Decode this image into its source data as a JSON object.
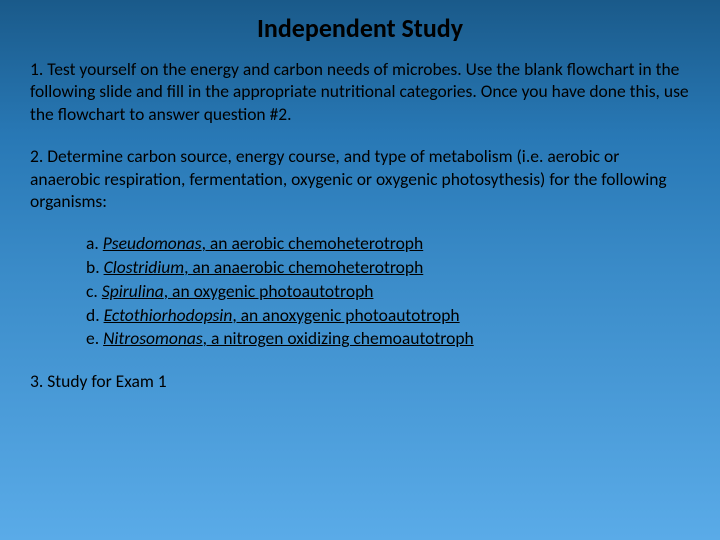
{
  "slide": {
    "title": "Independent Study",
    "q1": "1.  Test yourself on the energy and carbon needs of microbes.  Use the blank flowchart in the following slide and fill in the appropriate nutritional categories.  Once you have done this, use the flowchart to answer question #2.",
    "q2": "2.  Determine carbon source, energy course, and type of metabolism (i.e. aerobic or anaerobic respiration, fermentation, oxygenic or oxygenic photosythesis) for the following organisms:",
    "items": {
      "a_label": "a.  ",
      "a_name": "Pseudomonas",
      "a_desc": ", an aerobic chemoheterotroph",
      "b_label": "b.  ",
      "b_name": "Clostridium",
      "b_desc": ", an anaerobic chemoheterotroph",
      "c_label": "c.  ",
      "c_name": "Spirulina",
      "c_desc": ", an oxygenic photoautotroph",
      "d_label": "d.  ",
      "d_name": "Ectothiorhodopsin",
      "d_desc": ", an anoxygenic photoautotroph",
      "e_label": "e.  ",
      "e_name": "Nitrosomonas",
      "e_desc": ", a nitrogen oxidizing chemoautotroph"
    },
    "q3": "3.  Study for Exam 1"
  },
  "style": {
    "bg_gradient_top": "#1a5a8a",
    "bg_gradient_bottom": "#5aabe8",
    "text_color": "#000000",
    "title_fontsize": 26,
    "body_fontsize": 17.5,
    "font_family": "Calibri"
  }
}
